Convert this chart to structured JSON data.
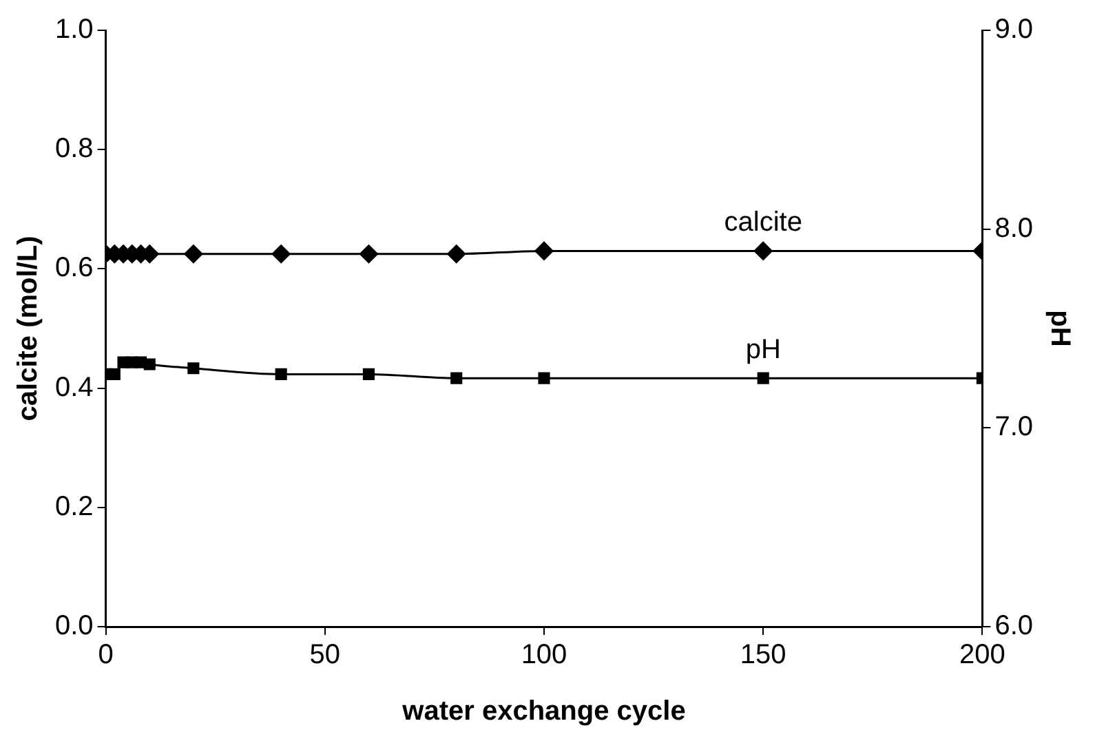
{
  "chart_data": {
    "type": "line",
    "xlabel": "water exchange cycle",
    "ylabel": "calcite (mol/L)",
    "y2label": "pH",
    "x": [
      0,
      2,
      4,
      6,
      8,
      10,
      20,
      40,
      60,
      80,
      100,
      150,
      200
    ],
    "series": [
      {
        "name": "calcite",
        "color": "#000000",
        "marker": "diamond",
        "values": [
          0.625,
          0.625,
          0.625,
          0.625,
          0.625,
          0.625,
          0.625,
          0.625,
          0.625,
          0.625,
          0.63,
          0.63,
          0.63
        ]
      },
      {
        "name": "pH",
        "color": "#000000",
        "marker": "square",
        "axis": "y2",
        "values": [
          7.27,
          7.27,
          7.33,
          7.33,
          7.33,
          7.32,
          7.3,
          7.27,
          7.27,
          7.25,
          7.25,
          7.25,
          7.25
        ]
      }
    ],
    "xlim": [
      0,
      200
    ],
    "xticks": [
      0,
      50,
      100,
      150,
      200
    ],
    "ylim": [
      0,
      1
    ],
    "yticks": [
      {
        "value": 0,
        "label": "0.0"
      },
      {
        "value": 0.2,
        "label": "0.2"
      },
      {
        "value": 0.4,
        "label": "0.4"
      },
      {
        "value": 0.6,
        "label": "0.6"
      },
      {
        "value": 0.8,
        "label": "0.8"
      },
      {
        "value": 1,
        "label": "1.0"
      }
    ],
    "y2lim": [
      6,
      9
    ],
    "y2ticks": [
      {
        "value": 6,
        "label": "6.0"
      },
      {
        "value": 7,
        "label": "7.0"
      },
      {
        "value": 8,
        "label": "8.0"
      },
      {
        "value": 9,
        "label": "9.0"
      }
    ],
    "grid": false,
    "legend": false,
    "line_style": "solid"
  }
}
